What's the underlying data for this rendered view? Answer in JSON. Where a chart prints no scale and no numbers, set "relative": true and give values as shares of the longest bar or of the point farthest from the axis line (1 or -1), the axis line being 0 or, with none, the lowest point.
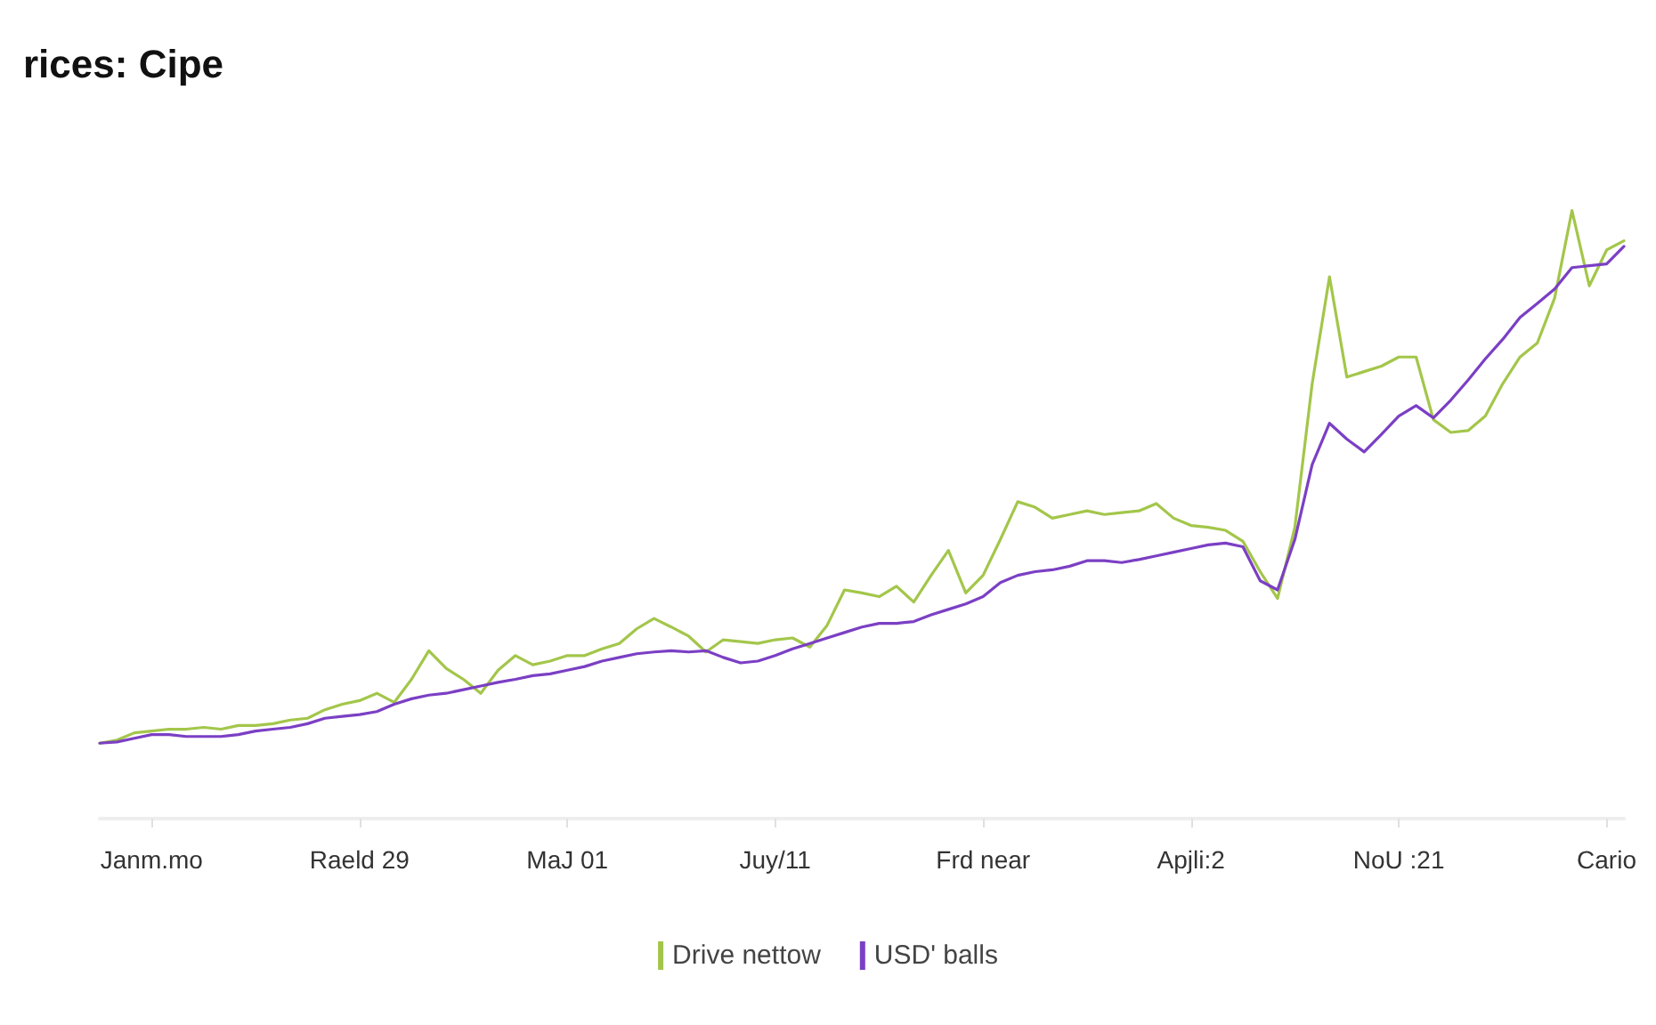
{
  "chart_data": {
    "type": "line",
    "title": "rices: Cipe",
    "relative": true,
    "legend": "bottom",
    "grid": false,
    "marker": "none",
    "line_style": "solid",
    "categories": [
      null,
      null,
      null,
      "Janm.mo",
      null,
      null,
      null,
      null,
      null,
      null,
      null,
      null,
      null,
      null,
      null,
      "Raeld 29",
      null,
      null,
      null,
      null,
      null,
      null,
      null,
      null,
      null,
      null,
      null,
      "MaJ 01",
      null,
      null,
      null,
      null,
      null,
      null,
      null,
      null,
      null,
      null,
      null,
      "Juy/11",
      null,
      null,
      null,
      null,
      null,
      null,
      null,
      null,
      null,
      null,
      null,
      "Frd near",
      null,
      null,
      null,
      null,
      null,
      null,
      null,
      null,
      null,
      null,
      null,
      "Apjli:2",
      null,
      null,
      null,
      null,
      null,
      null,
      null,
      null,
      null,
      null,
      null,
      "NoU :21",
      null,
      null,
      null,
      null,
      null,
      null,
      null,
      null,
      null,
      null,
      null,
      "Cario",
      null
    ],
    "series": [
      {
        "name": "Drive nettow",
        "color": "#a3c64a",
        "values": [
          0.124,
          0.129,
          0.141,
          0.144,
          0.147,
          0.147,
          0.15,
          0.147,
          0.153,
          0.153,
          0.156,
          0.162,
          0.165,
          0.179,
          0.188,
          0.194,
          0.206,
          0.191,
          0.229,
          0.276,
          0.247,
          0.229,
          0.206,
          0.244,
          0.268,
          0.253,
          0.259,
          0.268,
          0.268,
          0.279,
          0.288,
          0.312,
          0.329,
          0.315,
          0.3,
          0.274,
          0.294,
          0.291,
          0.288,
          0.294,
          0.297,
          0.282,
          0.318,
          0.376,
          0.371,
          0.365,
          0.382,
          0.356,
          0.4,
          0.441,
          0.371,
          0.4,
          0.459,
          0.521,
          0.512,
          0.494,
          0.5,
          0.506,
          0.5,
          0.503,
          0.506,
          0.518,
          0.494,
          0.482,
          0.479,
          0.474,
          0.456,
          0.406,
          0.362,
          0.479,
          0.715,
          0.891,
          0.726,
          0.735,
          0.744,
          0.759,
          0.759,
          0.656,
          0.635,
          0.638,
          0.662,
          0.715,
          0.759,
          0.782,
          0.856,
          1,
          0.876,
          0.935,
          0.95
        ]
      },
      {
        "name": "USD' balls",
        "color": "#7b3fc4",
        "values": [
          0.124,
          0.126,
          0.132,
          0.138,
          0.138,
          0.135,
          0.135,
          0.135,
          0.138,
          0.144,
          0.147,
          0.15,
          0.156,
          0.165,
          0.168,
          0.171,
          0.176,
          0.188,
          0.197,
          0.203,
          0.206,
          0.212,
          0.218,
          0.224,
          0.229,
          0.235,
          0.238,
          0.244,
          0.25,
          0.259,
          0.265,
          0.271,
          0.274,
          0.276,
          0.274,
          0.276,
          0.265,
          0.256,
          0.259,
          0.268,
          0.279,
          0.288,
          0.297,
          0.306,
          0.315,
          0.321,
          0.321,
          0.324,
          0.335,
          0.344,
          0.353,
          0.365,
          0.388,
          0.4,
          0.406,
          0.409,
          0.415,
          0.424,
          0.424,
          0.421,
          0.426,
          0.432,
          0.438,
          0.444,
          0.45,
          0.453,
          0.447,
          0.391,
          0.376,
          0.459,
          0.582,
          0.65,
          0.624,
          0.603,
          0.632,
          0.662,
          0.679,
          0.659,
          0.688,
          0.721,
          0.756,
          0.788,
          0.824,
          0.847,
          0.871,
          0.906,
          0.909,
          0.912,
          0.941
        ]
      }
    ]
  }
}
